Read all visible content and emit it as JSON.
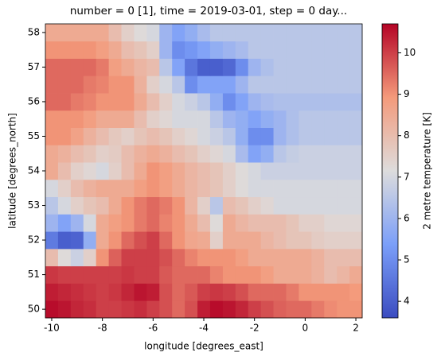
{
  "chart_data": {
    "type": "heatmap",
    "title": "number = 0 [1], time = 2019-03-01, step = 0 day...",
    "x_label": "longitude [degrees_east]",
    "y_label": "latitude [degrees_north]",
    "colorbar_label": "2 metre temperature [K]",
    "colormap": "coolwarm",
    "x": [
      -10,
      -9.5,
      -9,
      -8.5,
      -8,
      -7.5,
      -7,
      -6.5,
      -6,
      -5.5,
      -5,
      -4.5,
      -4,
      -3.5,
      -3,
      -2.5,
      -2,
      -1.5,
      -1,
      -0.5,
      0,
      0.5,
      1,
      1.5,
      2
    ],
    "y": [
      50,
      50.5,
      51,
      51.5,
      52,
      52.5,
      53,
      53.5,
      54,
      54.5,
      55,
      55.5,
      56,
      56.5,
      57,
      57.5,
      58
    ],
    "z": [
      [
        10.6,
        10.5,
        10.3,
        10.2,
        10.0,
        10.0,
        10.1,
        10.2,
        10.0,
        9.8,
        9.5,
        9.8,
        10.4,
        10.6,
        10.5,
        10.3,
        10.0,
        9.8,
        9.6,
        9.5,
        9.5,
        9.3,
        9.1,
        9.0,
        9.0
      ],
      [
        10.4,
        10.3,
        10.2,
        10.1,
        10.0,
        10.1,
        10.3,
        10.5,
        10.4,
        9.8,
        9.5,
        9.7,
        10.0,
        10.1,
        10.0,
        9.8,
        9.5,
        9.5,
        9.5,
        9.3,
        9.0,
        9.0,
        9.0,
        9.0,
        8.9
      ],
      [
        10.1,
        10.0,
        10.0,
        10.0,
        10.0,
        10.0,
        10.1,
        10.0,
        10.0,
        9.7,
        9.5,
        9.5,
        9.5,
        9.2,
        9.0,
        9.0,
        9.0,
        8.8,
        8.5,
        8.5,
        8.5,
        8.3,
        8.0,
        8.2,
        8.5
      ],
      [
        8.0,
        7.2,
        6.8,
        7.5,
        9.0,
        9.6,
        10.0,
        10.0,
        10.0,
        9.8,
        9.5,
        9.2,
        9.0,
        9.0,
        9.0,
        8.8,
        8.5,
        8.5,
        8.5,
        8.5,
        8.5,
        8.3,
        8.0,
        8.0,
        8.0
      ],
      [
        4.6,
        4.0,
        4.1,
        5.8,
        8.5,
        9.0,
        9.5,
        9.8,
        10.0,
        9.5,
        9.0,
        8.6,
        8.5,
        7.5,
        8.5,
        8.5,
        8.5,
        8.2,
        8.0,
        7.8,
        7.8,
        7.6,
        7.5,
        7.5,
        7.5
      ],
      [
        6.0,
        5.5,
        6.0,
        7.0,
        8.5,
        8.8,
        9.0,
        9.3,
        9.5,
        9.2,
        9.0,
        8.5,
        8.0,
        7.2,
        8.5,
        8.2,
        8.0,
        8.0,
        8.0,
        7.8,
        7.5,
        7.5,
        7.3,
        7.3,
        7.3
      ],
      [
        6.5,
        7.0,
        7.5,
        7.8,
        8.0,
        8.5,
        9.0,
        9.3,
        9.5,
        9.3,
        9.0,
        8.2,
        7.5,
        6.5,
        8.0,
        7.8,
        7.5,
        7.3,
        7.0,
        7.0,
        7.0,
        7.0,
        7.0,
        7.0,
        7.0
      ],
      [
        7.0,
        7.5,
        8.0,
        8.3,
        8.5,
        8.5,
        8.5,
        8.8,
        9.0,
        8.8,
        8.5,
        8.2,
        8.0,
        7.8,
        7.5,
        7.2,
        7.0,
        7.0,
        7.0,
        7.0,
        7.0,
        7.0,
        7.0,
        7.0,
        7.0
      ],
      [
        8.5,
        8.0,
        7.5,
        7.3,
        7.0,
        7.5,
        8.0,
        8.5,
        9.0,
        8.8,
        8.5,
        8.2,
        8.0,
        7.8,
        7.5,
        7.2,
        7.0,
        6.8,
        6.8,
        6.8,
        6.8,
        6.8,
        6.8,
        6.8,
        6.8
      ],
      [
        8.5,
        8.3,
        8.0,
        7.8,
        7.5,
        7.6,
        8.0,
        8.3,
        8.5,
        8.3,
        8.0,
        7.8,
        7.5,
        7.3,
        7.0,
        6.2,
        5.5,
        5.8,
        6.5,
        6.7,
        6.8,
        6.8,
        6.8,
        6.8,
        6.8
      ],
      [
        9.0,
        9.0,
        8.7,
        8.3,
        8.0,
        7.7,
        7.5,
        7.8,
        8.0,
        7.8,
        7.5,
        7.3,
        7.0,
        6.8,
        6.5,
        5.8,
        5.0,
        5.0,
        6.0,
        6.3,
        6.5,
        6.5,
        6.5,
        6.5,
        6.5
      ],
      [
        9.0,
        9.0,
        9.0,
        8.8,
        8.5,
        8.5,
        8.5,
        8.0,
        7.5,
        7.3,
        7.0,
        7.0,
        7.0,
        6.5,
        6.0,
        5.8,
        5.5,
        5.8,
        6.0,
        6.3,
        6.5,
        6.5,
        6.5,
        6.5,
        6.5
      ],
      [
        9.5,
        9.5,
        9.3,
        9.2,
        9.0,
        9.0,
        9.0,
        8.5,
        8.0,
        7.5,
        7.0,
        6.8,
        6.5,
        5.8,
        5.0,
        5.5,
        6.0,
        6.2,
        6.3,
        6.3,
        6.3,
        6.3,
        6.3,
        6.3,
        6.3
      ],
      [
        9.5,
        9.5,
        9.5,
        9.3,
        9.2,
        9.0,
        9.0,
        8.3,
        7.5,
        7.0,
        6.5,
        5.0,
        5.5,
        5.5,
        5.5,
        6.0,
        6.5,
        6.5,
        6.5,
        6.5,
        6.5,
        6.5,
        6.5,
        6.5,
        6.5
      ],
      [
        9.5,
        9.5,
        9.5,
        9.5,
        9.3,
        8.8,
        8.5,
        8.2,
        8.0,
        6.5,
        5.5,
        4.5,
        4.0,
        4.0,
        4.2,
        5.0,
        6.0,
        6.3,
        6.5,
        6.5,
        6.5,
        6.5,
        6.5,
        6.5,
        6.5
      ],
      [
        9.0,
        9.0,
        9.0,
        9.0,
        8.8,
        8.5,
        8.0,
        7.8,
        7.5,
        6.0,
        5.0,
        5.2,
        5.5,
        5.8,
        6.0,
        6.2,
        6.5,
        6.5,
        6.5,
        6.5,
        6.5,
        6.5,
        6.5,
        6.5,
        6.5
      ],
      [
        8.5,
        8.5,
        8.5,
        8.5,
        8.5,
        8.0,
        7.5,
        7.2,
        7.0,
        6.0,
        5.5,
        5.8,
        6.2,
        6.5,
        6.5,
        6.5,
        6.5,
        6.5,
        6.5,
        6.5,
        6.5,
        6.5,
        6.5,
        6.5,
        6.5
      ]
    ],
    "xlim": [
      -10.25,
      2.25
    ],
    "ylim": [
      49.75,
      58.25
    ],
    "xticks": [
      -10,
      -8,
      -6,
      -4,
      -2,
      0,
      2
    ],
    "yticks": [
      50,
      51,
      52,
      53,
      54,
      55,
      56,
      57,
      58
    ],
    "clim": [
      3.6,
      10.7
    ],
    "cticks": [
      4,
      5,
      6,
      7,
      8,
      9,
      10
    ]
  }
}
